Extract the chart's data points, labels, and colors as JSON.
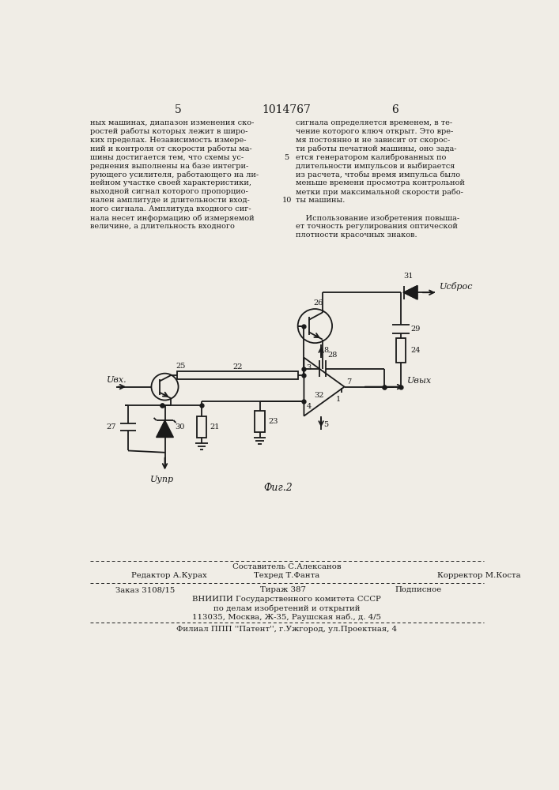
{
  "page_number_left": "5",
  "page_number_center": "1014767",
  "page_number_right": "6",
  "col1_text": [
    "ных машинах, диапазон изменения ско-",
    "ростей работы которых лежит в широ-",
    "ких пределах. Независимость измере-",
    "ний и контроля от скорости работы ма-",
    "шины достигается тем, что схемы ус-",
    "реднения выполнены на базе интегри-",
    "рующего усилителя, работающего на ли-",
    "нейном участке своей характеристики,",
    "выходной сигнал которого пропорцио-",
    "нален амплитуде и длительности вход-",
    "ного сигнала. Амплитуда входного сиг-",
    "нала несет информацию об измеряемой",
    "величине, а длительность входного"
  ],
  "col2_text": [
    "сигнала определяется временем, в те-",
    "чение которого ключ открыт. Это вре-",
    "мя постоянно и не зависит от скорос-",
    "ти работы печатной машины, оно зада-",
    "ется генератором калиброванных по",
    "длительности импульсов и выбирается",
    "из расчета, чтобы время импульса было",
    "меньше времени просмотра контрольной",
    "метки при максимальной скорости рабо-",
    "ты машины."
  ],
  "col2_para2": [
    "    Использование изобретения повыша-",
    "ет точность регулирования оптической",
    "плотности красочных знаков."
  ],
  "bg_color": "#f0ede6",
  "text_color": "#1a1a1a",
  "circuit_color": "#1a1a1a"
}
